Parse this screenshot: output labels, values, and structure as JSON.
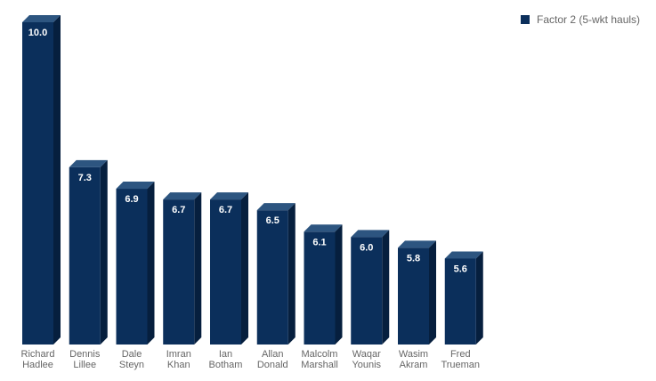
{
  "chart_data": {
    "type": "bar",
    "style": "3d",
    "categories": [
      "Richard Hadlee",
      "Dennis Lillee",
      "Dale Steyn",
      "Imran Khan",
      "Ian Botham",
      "Allan Donald",
      "Malcolm Marshall",
      "Waqar Younis",
      "Wasim Akram",
      "Fred Trueman"
    ],
    "category_lines": [
      [
        "Richard",
        "Hadlee"
      ],
      [
        "Dennis",
        "Lillee"
      ],
      [
        "Dale",
        "Steyn"
      ],
      [
        "Imran",
        "Khan"
      ],
      [
        "Ian",
        "Botham"
      ],
      [
        "Allan",
        "Donald"
      ],
      [
        "Malcolm",
        "Marshall"
      ],
      [
        "Waqar",
        "Younis"
      ],
      [
        "Wasim",
        "Akram"
      ],
      [
        "Fred",
        "Trueman"
      ]
    ],
    "series": [
      {
        "name": "Factor 2 (5-wkt hauls)",
        "values": [
          10.0,
          7.3,
          6.9,
          6.7,
          6.7,
          6.5,
          6.1,
          6.0,
          5.8,
          5.6
        ],
        "labels": [
          "10.0",
          "7.3",
          "6.9",
          "6.7",
          "6.7",
          "6.5",
          "6.1",
          "6.0",
          "5.8",
          "5.6"
        ]
      }
    ],
    "ylim": [
      4,
      10
    ],
    "grid": false,
    "legend_position": "top-right",
    "colors": {
      "front": "#0b2f5b",
      "side": "#061f3e",
      "top": "#2d5580",
      "label": "#ffffff",
      "tick": "#666666"
    }
  }
}
